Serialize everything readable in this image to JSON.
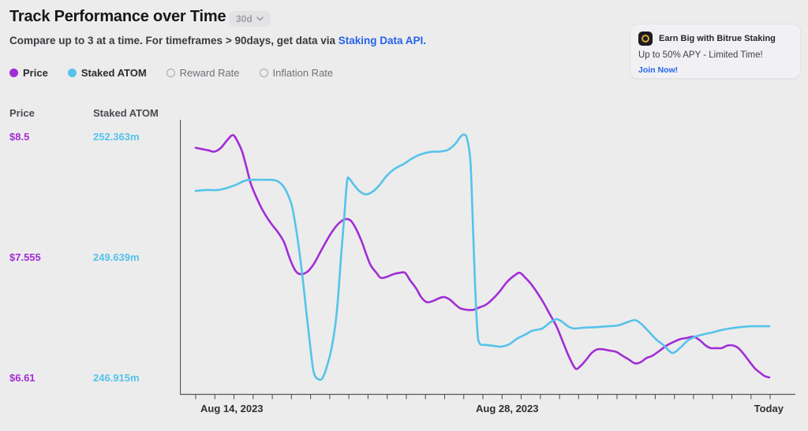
{
  "header": {
    "title": "Track Performance over Time",
    "timeframe_label": "30d",
    "subtitle_text": "Compare up to 3 at a time. For timeframes > 90days, get data via ",
    "subtitle_link": "Staking Data API."
  },
  "promo": {
    "icon": "bitrue-logo",
    "line1": "Earn Big with Bitrue Staking",
    "line2": "Up to 50% APY - Limited Time!",
    "cta": "Join Now!"
  },
  "legend": [
    {
      "label": "Price",
      "color": "#a12dd6",
      "selected": true
    },
    {
      "label": "Staked ATOM",
      "color": "#55c3ea",
      "selected": true
    },
    {
      "label": "Reward Rate",
      "color": null,
      "selected": false
    },
    {
      "label": "Inflation Rate",
      "color": null,
      "selected": false
    }
  ],
  "colors": {
    "background": "#ececec",
    "accent_purple": "#a12dd6",
    "accent_blue": "#55c3ea",
    "link_blue": "#2563eb",
    "axis": "#55555b"
  },
  "chart_data": {
    "type": "line",
    "title": "Track Performance over Time",
    "timeframe": "30d",
    "grid": false,
    "legend_position": "top-left",
    "x_axis": {
      "tick_count": 31,
      "labels": [
        {
          "text": "Aug 14, 2023",
          "t": 0.063
        },
        {
          "text": "Aug 28, 2023",
          "t": 0.543
        },
        {
          "text": "Today",
          "t": 0.999
        }
      ]
    },
    "y_axes": [
      {
        "id": "price",
        "header": "Price",
        "color": "#a12dd6",
        "ticks": [
          {
            "label": "$8.5",
            "value": 8.5
          },
          {
            "label": "$7.555",
            "value": 7.555
          },
          {
            "label": "$6.61",
            "value": 6.61
          }
        ]
      },
      {
        "id": "staked_atom",
        "header": "Staked ATOM",
        "color": "#55c3ea",
        "ticks": [
          {
            "label": "252.363m",
            "value": 252.363
          },
          {
            "label": "249.639m",
            "value": 249.639
          },
          {
            "label": "246.915m",
            "value": 246.915
          }
        ]
      }
    ],
    "series": [
      {
        "name": "Price",
        "axis": "price",
        "color": "#a12dd6",
        "points": [
          [
            0,
            8.41
          ],
          [
            0.011,
            8.4
          ],
          [
            0.022,
            8.39
          ],
          [
            0.033,
            8.38
          ],
          [
            0.044,
            8.41
          ],
          [
            0.055,
            8.47
          ],
          [
            0.065,
            8.51
          ],
          [
            0.073,
            8.46
          ],
          [
            0.081,
            8.38
          ],
          [
            0.089,
            8.25
          ],
          [
            0.096,
            8.13
          ],
          [
            0.107,
            8.01
          ],
          [
            0.118,
            7.91
          ],
          [
            0.131,
            7.82
          ],
          [
            0.143,
            7.75
          ],
          [
            0.154,
            7.67
          ],
          [
            0.165,
            7.53
          ],
          [
            0.175,
            7.44
          ],
          [
            0.184,
            7.42
          ],
          [
            0.195,
            7.44
          ],
          [
            0.206,
            7.5
          ],
          [
            0.217,
            7.59
          ],
          [
            0.228,
            7.68
          ],
          [
            0.239,
            7.76
          ],
          [
            0.25,
            7.82
          ],
          [
            0.26,
            7.85
          ],
          [
            0.27,
            7.84
          ],
          [
            0.279,
            7.78
          ],
          [
            0.289,
            7.68
          ],
          [
            0.297,
            7.58
          ],
          [
            0.305,
            7.49
          ],
          [
            0.315,
            7.43
          ],
          [
            0.323,
            7.39
          ],
          [
            0.334,
            7.4
          ],
          [
            0.345,
            7.42
          ],
          [
            0.356,
            7.43
          ],
          [
            0.365,
            7.43
          ],
          [
            0.374,
            7.37
          ],
          [
            0.384,
            7.31
          ],
          [
            0.393,
            7.24
          ],
          [
            0.403,
            7.2
          ],
          [
            0.414,
            7.21
          ],
          [
            0.424,
            7.23
          ],
          [
            0.433,
            7.24
          ],
          [
            0.443,
            7.22
          ],
          [
            0.453,
            7.18
          ],
          [
            0.462,
            7.15
          ],
          [
            0.473,
            7.14
          ],
          [
            0.484,
            7.14
          ],
          [
            0.495,
            7.16
          ],
          [
            0.506,
            7.18
          ],
          [
            0.519,
            7.23
          ],
          [
            0.531,
            7.29
          ],
          [
            0.543,
            7.36
          ],
          [
            0.556,
            7.41
          ],
          [
            0.565,
            7.43
          ],
          [
            0.575,
            7.39
          ],
          [
            0.585,
            7.34
          ],
          [
            0.596,
            7.27
          ],
          [
            0.607,
            7.19
          ],
          [
            0.618,
            7.1
          ],
          [
            0.629,
            7.01
          ],
          [
            0.64,
            6.89
          ],
          [
            0.651,
            6.77
          ],
          [
            0.662,
            6.68
          ],
          [
            0.671,
            6.7
          ],
          [
            0.681,
            6.75
          ],
          [
            0.69,
            6.8
          ],
          [
            0.7,
            6.83
          ],
          [
            0.711,
            6.83
          ],
          [
            0.722,
            6.82
          ],
          [
            0.733,
            6.81
          ],
          [
            0.744,
            6.78
          ],
          [
            0.755,
            6.75
          ],
          [
            0.766,
            6.72
          ],
          [
            0.776,
            6.73
          ],
          [
            0.785,
            6.76
          ],
          [
            0.796,
            6.78
          ],
          [
            0.809,
            6.82
          ],
          [
            0.821,
            6.86
          ],
          [
            0.834,
            6.89
          ],
          [
            0.845,
            6.91
          ],
          [
            0.857,
            6.92
          ],
          [
            0.868,
            6.93
          ],
          [
            0.879,
            6.9
          ],
          [
            0.889,
            6.86
          ],
          [
            0.898,
            6.84
          ],
          [
            0.908,
            6.84
          ],
          [
            0.917,
            6.84
          ],
          [
            0.927,
            6.86
          ],
          [
            0.937,
            6.86
          ],
          [
            0.946,
            6.84
          ],
          [
            0.956,
            6.79
          ],
          [
            0.966,
            6.73
          ],
          [
            0.975,
            6.68
          ],
          [
            0.983,
            6.65
          ],
          [
            0.992,
            6.62
          ],
          [
            1,
            6.61
          ]
        ]
      },
      {
        "name": "Staked ATOM",
        "axis": "staked_atom",
        "color": "#55c3ea",
        "points": [
          [
            0,
            251.13
          ],
          [
            0.019,
            251.15
          ],
          [
            0.039,
            251.15
          ],
          [
            0.058,
            251.21
          ],
          [
            0.074,
            251.29
          ],
          [
            0.088,
            251.37
          ],
          [
            0.106,
            251.38
          ],
          [
            0.124,
            251.38
          ],
          [
            0.138,
            251.37
          ],
          [
            0.149,
            251.29
          ],
          [
            0.158,
            251.12
          ],
          [
            0.168,
            250.78
          ],
          [
            0.177,
            250.1
          ],
          [
            0.186,
            249.21
          ],
          [
            0.194,
            248.27
          ],
          [
            0.201,
            247.47
          ],
          [
            0.206,
            247.02
          ],
          [
            0.213,
            246.88
          ],
          [
            0.221,
            246.9
          ],
          [
            0.23,
            247.22
          ],
          [
            0.238,
            247.65
          ],
          [
            0.246,
            248.39
          ],
          [
            0.253,
            249.57
          ],
          [
            0.259,
            250.55
          ],
          [
            0.264,
            251.35
          ],
          [
            0.268,
            251.4
          ],
          [
            0.275,
            251.28
          ],
          [
            0.285,
            251.13
          ],
          [
            0.296,
            251.05
          ],
          [
            0.307,
            251.1
          ],
          [
            0.319,
            251.24
          ],
          [
            0.333,
            251.47
          ],
          [
            0.347,
            251.63
          ],
          [
            0.363,
            251.74
          ],
          [
            0.377,
            251.86
          ],
          [
            0.391,
            251.95
          ],
          [
            0.409,
            252.01
          ],
          [
            0.426,
            252.02
          ],
          [
            0.44,
            252.06
          ],
          [
            0.453,
            252.2
          ],
          [
            0.462,
            252.36
          ],
          [
            0.468,
            252.4
          ],
          [
            0.473,
            252.31
          ],
          [
            0.479,
            251.79
          ],
          [
            0.483,
            250.46
          ],
          [
            0.487,
            249.03
          ],
          [
            0.491,
            247.97
          ],
          [
            0.495,
            247.68
          ],
          [
            0.505,
            247.65
          ],
          [
            0.519,
            247.63
          ],
          [
            0.532,
            247.61
          ],
          [
            0.546,
            247.66
          ],
          [
            0.56,
            247.79
          ],
          [
            0.574,
            247.88
          ],
          [
            0.587,
            247.97
          ],
          [
            0.604,
            248.02
          ],
          [
            0.618,
            248.16
          ],
          [
            0.629,
            248.23
          ],
          [
            0.638,
            248.18
          ],
          [
            0.649,
            248.07
          ],
          [
            0.66,
            248.02
          ],
          [
            0.677,
            248.04
          ],
          [
            0.697,
            248.05
          ],
          [
            0.718,
            248.07
          ],
          [
            0.736,
            248.09
          ],
          [
            0.752,
            248.16
          ],
          [
            0.766,
            248.21
          ],
          [
            0.777,
            248.12
          ],
          [
            0.79,
            247.95
          ],
          [
            0.803,
            247.77
          ],
          [
            0.816,
            247.64
          ],
          [
            0.831,
            247.47
          ],
          [
            0.845,
            247.59
          ],
          [
            0.858,
            247.75
          ],
          [
            0.872,
            247.84
          ],
          [
            0.886,
            247.89
          ],
          [
            0.9,
            247.93
          ],
          [
            0.915,
            247.98
          ],
          [
            0.931,
            248.02
          ],
          [
            0.949,
            248.05
          ],
          [
            0.966,
            248.07
          ],
          [
            0.983,
            248.07
          ],
          [
            1,
            248.07
          ]
        ]
      }
    ]
  }
}
